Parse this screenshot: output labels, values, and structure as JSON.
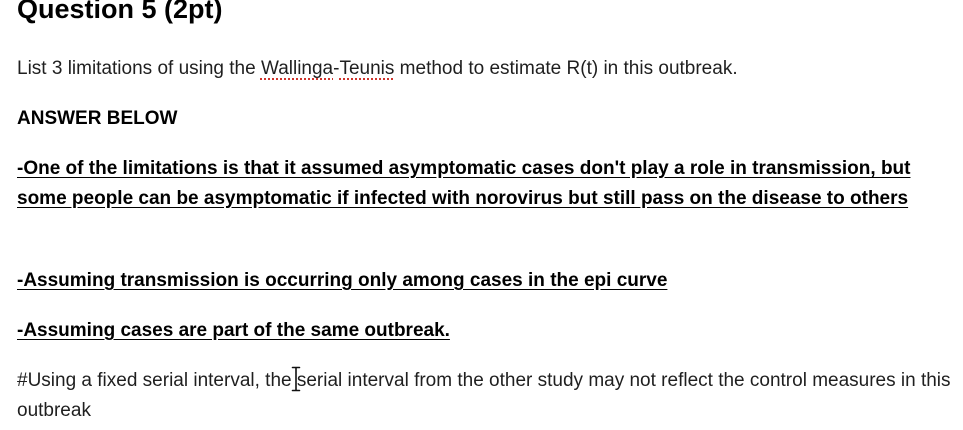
{
  "question": {
    "title": "Question 5 (2pt)",
    "prompt_before": "List 3 limitations of using the ",
    "prompt_word1": "Wallinga",
    "prompt_sep": "-",
    "prompt_word2": "Teunis",
    "prompt_after": " method to estimate R(t) in this outbreak."
  },
  "answer": {
    "label": "ANSWER BELOW",
    "items": [
      "-One of the limitations is that it assumed asymptomatic cases don't play a role in transmission, but some people can be asymptomatic if infected with norovirus but still pass on the disease to others",
      "-Assuming transmission is occurring only among cases in the epi curve",
      "-Assuming cases are part of the same outbreak."
    ],
    "note": "#Using a fixed serial interval, the serial interval from the other study may not reflect the control measures in this outbreak"
  },
  "cursor_icon": "text-cursor-icon",
  "colors": {
    "text": "#1f1f1f",
    "spellcheck_underline": "#d0342c"
  }
}
